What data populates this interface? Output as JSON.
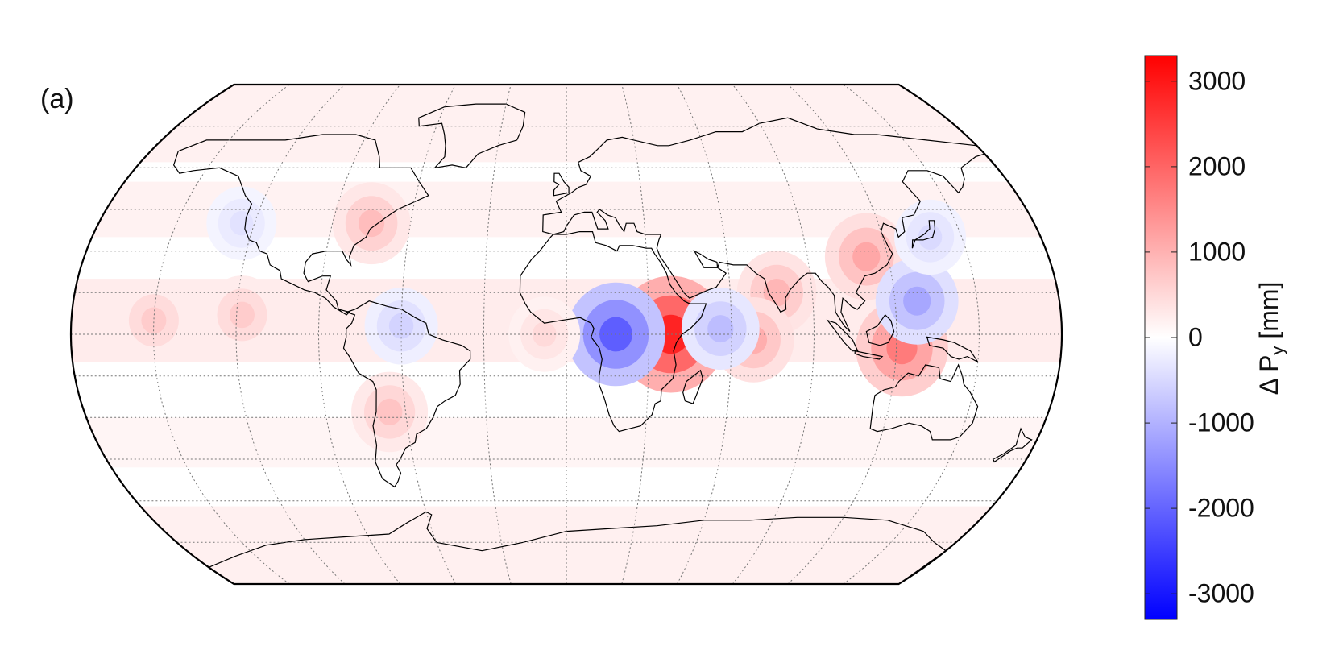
{
  "panel_label": "(a)",
  "colorbar": {
    "title_prefix": "Δ P",
    "title_subscript": "y",
    "unit": "[mm]",
    "ticks": [
      {
        "value": 3000,
        "label": "3000"
      },
      {
        "value": 2000,
        "label": "2000"
      },
      {
        "value": 1000,
        "label": "1000"
      },
      {
        "value": 0,
        "label": "0"
      },
      {
        "value": -1000,
        "label": "-1000"
      },
      {
        "value": -2000,
        "label": "-2000"
      },
      {
        "value": -3000,
        "label": "-3000"
      }
    ],
    "range": [
      -3300,
      3300
    ],
    "colormap": {
      "negative": "#0000ff",
      "zero": "#ffffff",
      "positive": "#ff0000"
    }
  },
  "map": {
    "projection": "robinson-like",
    "graticule_latitudes": [
      -75,
      -60,
      -45,
      -30,
      -15,
      0,
      15,
      30,
      45,
      60,
      75
    ],
    "graticule_longitudes": [
      -150,
      -120,
      -90,
      -60,
      -30,
      0,
      30,
      60,
      90,
      120,
      150
    ],
    "anomalies": [
      {
        "name": "east-africa-positive",
        "lon": 38,
        "lat": 0,
        "value": 3000
      },
      {
        "name": "central-africa-negative",
        "lon": 18,
        "lat": 0,
        "value": -2200
      },
      {
        "name": "indonesia-positive",
        "lon": 122,
        "lat": -5,
        "value": 1800
      },
      {
        "name": "south-china-positive",
        "lon": 112,
        "lat": 28,
        "value": 1200
      },
      {
        "name": "philippine-sea-negative",
        "lon": 128,
        "lat": 12,
        "value": -1200
      },
      {
        "name": "india-positive",
        "lon": 77,
        "lat": 15,
        "value": 1000
      },
      {
        "name": "indian-ocean-positive",
        "lon": 68,
        "lat": -2,
        "value": 1100
      },
      {
        "name": "indian-ocean-negative",
        "lon": 56,
        "lat": 2,
        "value": -900
      },
      {
        "name": "eastern-pacific-positive",
        "lon": -150,
        "lat": 5,
        "value": 700
      },
      {
        "name": "central-pacific-positive",
        "lon": -118,
        "lat": 7,
        "value": 700
      },
      {
        "name": "south-america-positive",
        "lon": -66,
        "lat": -28,
        "value": 800
      },
      {
        "name": "north-america-positive",
        "lon": -75,
        "lat": 40,
        "value": 900
      },
      {
        "name": "amazon-negative",
        "lon": -60,
        "lat": 3,
        "value": -600
      },
      {
        "name": "atlantic-positive",
        "lon": -8,
        "lat": 0,
        "value": 500
      },
      {
        "name": "north-pacific-negative",
        "lon": -125,
        "lat": 40,
        "value": -400
      },
      {
        "name": "japan-negative",
        "lon": 138,
        "lat": 35,
        "value": -500
      }
    ]
  }
}
